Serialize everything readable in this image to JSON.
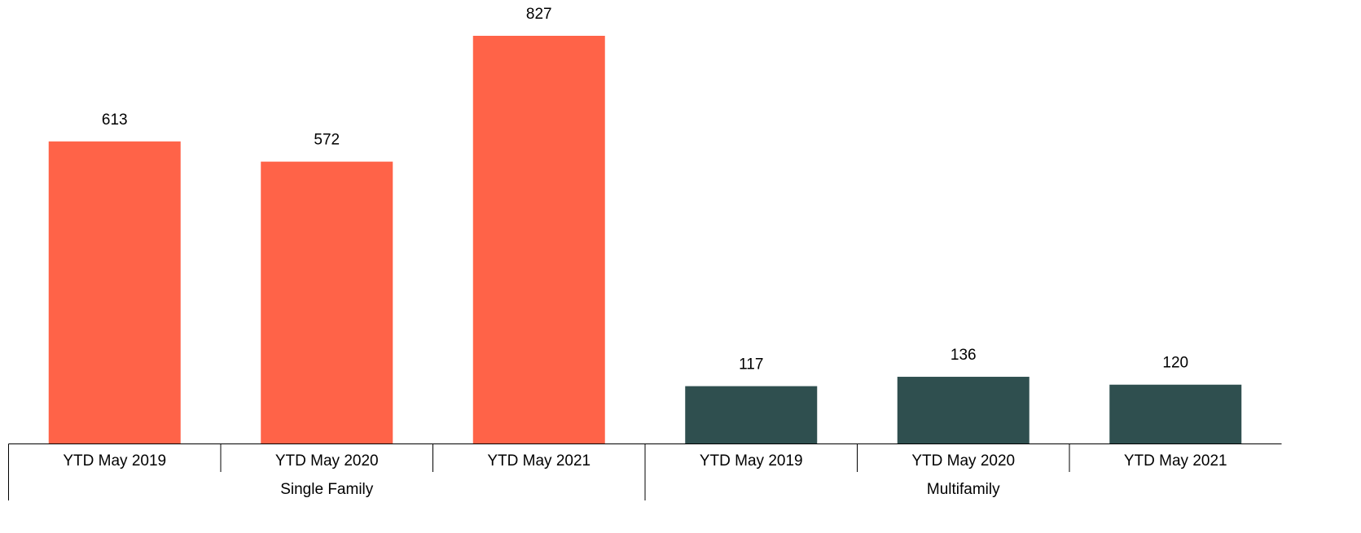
{
  "chart_data": {
    "type": "bar",
    "groups": [
      {
        "name": "Single Family",
        "color": "#ff6348",
        "categories": [
          "YTD May 2019",
          "YTD May 2020",
          "YTD May 2021"
        ],
        "values": [
          613,
          572,
          827
        ]
      },
      {
        "name": "Multifamily",
        "color": "#2f4f4f",
        "categories": [
          "YTD May 2019",
          "YTD May 2020",
          "YTD May 2021"
        ],
        "values": [
          117,
          136,
          120
        ]
      }
    ]
  }
}
